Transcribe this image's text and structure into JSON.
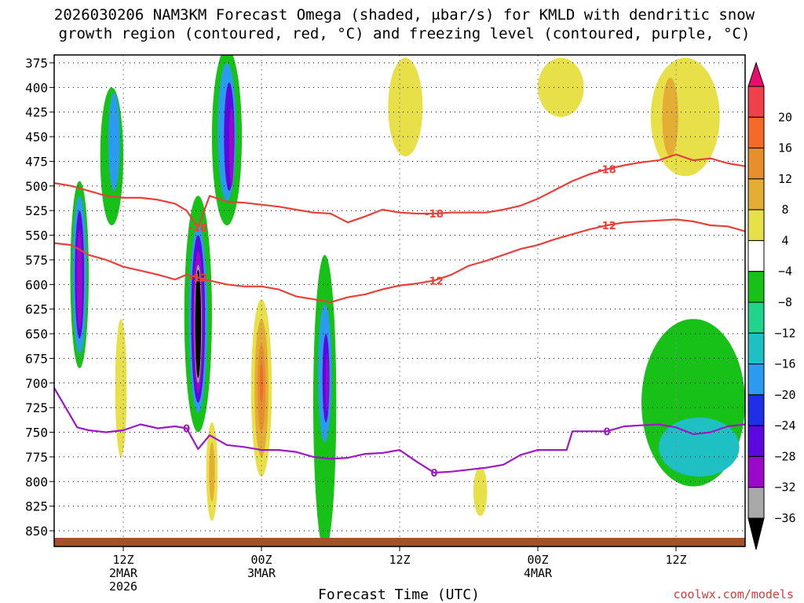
{
  "chart_data": {
    "type": "heatmap",
    "title_line1": "2026030206 NAM3KM Forecast Omega (shaded, μbar/s) for KMLD with dendritic snow",
    "title_line2": "growth region (contoured, red, °C) and freezing level (contoured, purple, °C)",
    "xlabel": "Forecast Time (UTC)",
    "credit": "coolwx.com/models",
    "ylim": [
      850,
      375
    ],
    "xlim_hours": [
      6,
      66
    ],
    "y_ticks": [
      "375",
      "400",
      "425",
      "450",
      "475",
      "500",
      "525",
      "550",
      "575",
      "600",
      "625",
      "650",
      "675",
      "700",
      "725",
      "750",
      "775",
      "800",
      "825",
      "850"
    ],
    "x_ticks": [
      {
        "hour": 12,
        "lines": [
          "12Z",
          "2MAR",
          "2026"
        ]
      },
      {
        "hour": 24,
        "lines": [
          "00Z",
          "3MAR"
        ]
      },
      {
        "hour": 36,
        "lines": [
          "12Z"
        ]
      },
      {
        "hour": 48,
        "lines": [
          "00Z",
          "4MAR"
        ]
      },
      {
        "hour": 60,
        "lines": [
          "12Z"
        ]
      }
    ],
    "colorbar": {
      "levels": [
        "20",
        "16",
        "12",
        "8",
        "4",
        "−4",
        "−8",
        "−12",
        "−16",
        "−20",
        "−24",
        "−28",
        "−32",
        "−36"
      ],
      "colors": [
        "#ea0d6b",
        "#f0404a",
        "#f36a2a",
        "#e88f2c",
        "#e4ae35",
        "#e8e048",
        "#ffffff",
        "#17c117",
        "#22d38c",
        "#1ec0c3",
        "#2a9bef",
        "#1f2fe6",
        "#5a0ae0",
        "#9a08c8",
        "#a8a8a8",
        "#000000"
      ]
    },
    "omega_blobs": [
      {
        "hour": 8.2,
        "pres": 590,
        "r_h": 0.8,
        "r_p": 95,
        "level": -8
      },
      {
        "hour": 8.2,
        "pres": 590,
        "r_h": 0.6,
        "r_p": 80,
        "level": -16
      },
      {
        "hour": 8.2,
        "pres": 590,
        "r_h": 0.4,
        "r_p": 65,
        "level": -24
      },
      {
        "hour": 8.2,
        "pres": 595,
        "r_h": 0.25,
        "r_p": 50,
        "level": -28
      },
      {
        "hour": 11.0,
        "pres": 470,
        "r_h": 1.0,
        "r_p": 70,
        "level": -8
      },
      {
        "hour": 11.2,
        "pres": 455,
        "r_h": 0.5,
        "r_p": 50,
        "level": -16
      },
      {
        "hour": 18.5,
        "pres": 630,
        "r_h": 1.2,
        "r_p": 120,
        "level": -8
      },
      {
        "hour": 18.5,
        "pres": 635,
        "r_h": 0.8,
        "r_p": 95,
        "level": -16
      },
      {
        "hour": 18.5,
        "pres": 635,
        "r_h": 0.6,
        "r_p": 85,
        "level": -24
      },
      {
        "hour": 18.5,
        "pres": 638,
        "r_h": 0.45,
        "r_p": 72,
        "level": -28
      },
      {
        "hour": 18.5,
        "pres": 640,
        "r_h": 0.32,
        "r_p": 60,
        "level": -32
      },
      {
        "hour": 18.5,
        "pres": 640,
        "r_h": 0.26,
        "r_p": 55,
        "level": -36
      },
      {
        "hour": 21.0,
        "pres": 450,
        "r_h": 1.3,
        "r_p": 90,
        "level": -8
      },
      {
        "hour": 21.0,
        "pres": 445,
        "r_h": 0.8,
        "r_p": 70,
        "level": -16
      },
      {
        "hour": 21.2,
        "pres": 450,
        "r_h": 0.45,
        "r_p": 55,
        "level": -24
      },
      {
        "hour": 21.4,
        "pres": 460,
        "r_h": 0.2,
        "r_p": 40,
        "level": -28
      },
      {
        "hour": 29.5,
        "pres": 720,
        "r_h": 1.0,
        "r_p": 150,
        "level": -8
      },
      {
        "hour": 29.5,
        "pres": 690,
        "r_h": 0.6,
        "r_p": 70,
        "level": -16
      },
      {
        "hour": 29.6,
        "pres": 695,
        "r_h": 0.3,
        "r_p": 45,
        "level": -24
      },
      {
        "hour": 29.7,
        "pres": 700,
        "r_h": 0.15,
        "r_p": 30,
        "level": -28
      },
      {
        "hour": 61.5,
        "pres": 720,
        "r_h": 4.5,
        "r_p": 85,
        "level": -8
      },
      {
        "hour": 62.0,
        "pres": 765,
        "r_h": 3.5,
        "r_p": 30,
        "level": -12
      },
      {
        "hour": 24.0,
        "pres": 705,
        "r_h": 0.9,
        "r_p": 90,
        "level": 4
      },
      {
        "hour": 24.0,
        "pres": 705,
        "r_h": 0.6,
        "r_p": 70,
        "level": 8
      },
      {
        "hour": 24.0,
        "pres": 705,
        "r_h": 0.35,
        "r_p": 45,
        "level": 12
      },
      {
        "hour": 24.0,
        "pres": 700,
        "r_h": 0.15,
        "r_p": 20,
        "level": 16
      },
      {
        "hour": 11.8,
        "pres": 705,
        "r_h": 0.5,
        "r_p": 70,
        "level": 4
      },
      {
        "hour": 19.7,
        "pres": 790,
        "r_h": 0.5,
        "r_p": 50,
        "level": 4
      },
      {
        "hour": 19.7,
        "pres": 790,
        "r_h": 0.25,
        "r_p": 30,
        "level": 8
      },
      {
        "hour": 36.5,
        "pres": 420,
        "r_h": 1.5,
        "r_p": 50,
        "level": 4
      },
      {
        "hour": 50.0,
        "pres": 400,
        "r_h": 2.0,
        "r_p": 30,
        "level": 4
      },
      {
        "hour": 60.8,
        "pres": 430,
        "r_h": 3.0,
        "r_p": 60,
        "level": 4
      },
      {
        "hour": 59.5,
        "pres": 430,
        "r_h": 0.7,
        "r_p": 40,
        "level": 8
      },
      {
        "hour": 43.0,
        "pres": 810,
        "r_h": 0.6,
        "r_p": 25,
        "level": 4
      }
    ],
    "series": [
      {
        "name": "-18",
        "color": "#e8413c",
        "x": [
          6.0,
          7.5,
          9.0,
          10.5,
          12.0,
          13.5,
          15.0,
          16.5,
          17.5,
          18.5,
          19.5,
          21.0,
          22.5,
          24.0,
          25.5,
          27.0,
          28.5,
          30.0,
          31.5,
          33.0,
          34.5,
          36.0,
          37.5,
          39.0,
          40.5,
          42.0,
          43.5,
          45.0,
          46.5,
          48.0,
          49.5,
          51.0,
          52.5,
          54.0,
          55.5,
          57.0,
          58.5,
          60.0,
          61.5,
          63.0,
          64.5,
          66.0
        ],
        "y": [
          497,
          500,
          505,
          510,
          512,
          512,
          514,
          518,
          525,
          542,
          510,
          516,
          517,
          519,
          521,
          524,
          527,
          528,
          537,
          531,
          524,
          527,
          528,
          528,
          527,
          527,
          527,
          524,
          520,
          513,
          504,
          495,
          488,
          483,
          479,
          476,
          474,
          468,
          474,
          472,
          477,
          480
        ]
      },
      {
        "name": "-12",
        "color": "#e8413c",
        "x": [
          6.0,
          7.5,
          9.0,
          10.5,
          12.0,
          13.5,
          15.0,
          16.5,
          17.5,
          18.5,
          19.5,
          21.0,
          22.5,
          24.0,
          25.5,
          27.0,
          28.5,
          30.0,
          31.5,
          33.0,
          34.5,
          36.0,
          37.5,
          39.0,
          40.5,
          42.0,
          43.5,
          45.0,
          46.5,
          48.0,
          49.5,
          51.0,
          52.5,
          54.0,
          55.5,
          57.0,
          58.5,
          60.0,
          61.5,
          63.0,
          64.5,
          66.0
        ],
        "y": [
          558,
          560,
          570,
          575,
          582,
          586,
          590,
          595,
          590,
          593,
          596,
          600,
          602,
          602,
          605,
          612,
          615,
          618,
          613,
          610,
          605,
          601,
          599,
          596,
          590,
          581,
          576,
          570,
          564,
          560,
          554,
          549,
          544,
          540,
          537,
          536,
          535,
          534,
          536,
          540,
          541,
          546
        ]
      },
      {
        "name": "0",
        "color": "#9d18c6",
        "x": [
          6.0,
          7.0,
          8.0,
          9.0,
          10.5,
          12.0,
          13.5,
          15.0,
          16.5,
          17.5,
          18.5,
          19.5,
          21.0,
          22.5,
          24.0,
          25.5,
          27.0,
          28.5,
          30.0,
          31.5,
          33.0,
          34.5,
          36.0,
          37.5,
          39.0,
          40.5,
          42.0,
          43.5,
          45.0,
          46.5,
          48.0,
          49.5,
          50.5,
          51.0,
          52.5,
          54.0,
          55.5,
          57.0,
          58.5,
          60.0,
          61.5,
          63.0,
          64.5,
          66.0
        ],
        "y": [
          705,
          725,
          745,
          748,
          750,
          748,
          742,
          746,
          744,
          746,
          767,
          753,
          763,
          765,
          768,
          768,
          770,
          775,
          777,
          776,
          772,
          771,
          768,
          780,
          791,
          790,
          788,
          786,
          783,
          773,
          768,
          768,
          768,
          749,
          749,
          749,
          744,
          743,
          742,
          745,
          752,
          750,
          744,
          742
        ]
      }
    ],
    "ground_color": "#a0522d"
  }
}
